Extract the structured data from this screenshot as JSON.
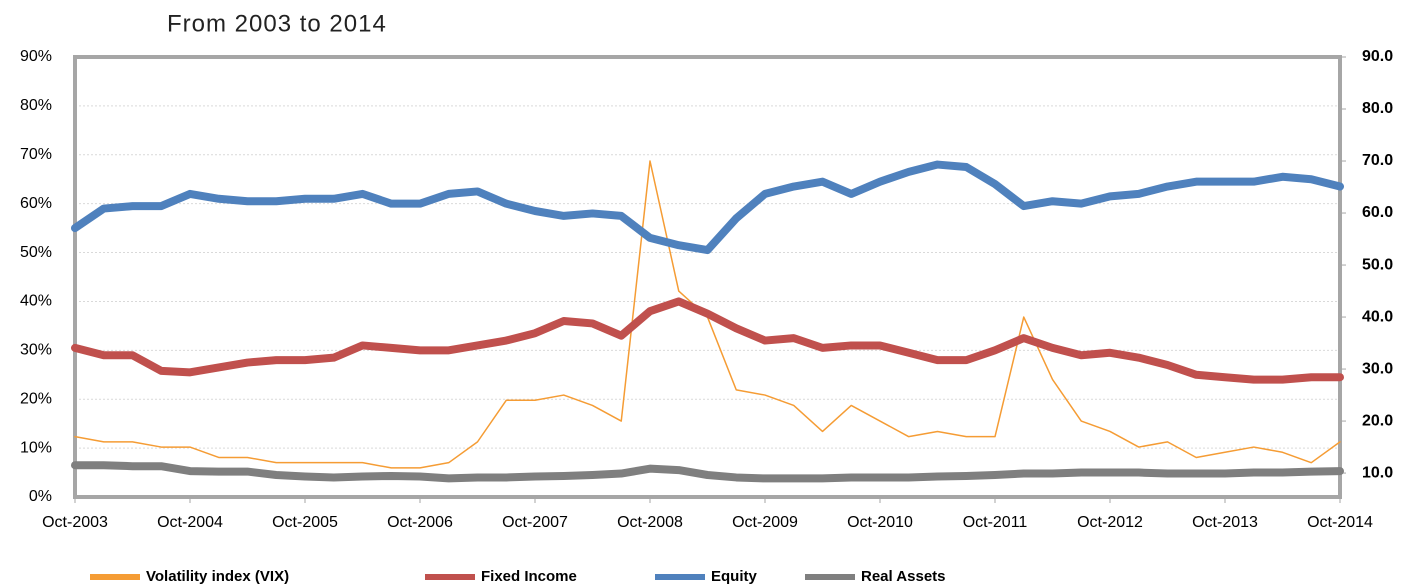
{
  "chart_data": {
    "type": "line",
    "title": "From 2003 to 2014",
    "x": [
      2003.75,
      2004.0,
      2004.25,
      2004.5,
      2004.75,
      2005.0,
      2005.25,
      2005.5,
      2005.75,
      2006.0,
      2006.25,
      2006.5,
      2006.75,
      2007.0,
      2007.25,
      2007.5,
      2007.75,
      2008.0,
      2008.25,
      2008.5,
      2008.75,
      2009.0,
      2009.25,
      2009.5,
      2009.75,
      2010.0,
      2010.25,
      2010.5,
      2010.75,
      2011.0,
      2011.25,
      2011.5,
      2011.75,
      2012.0,
      2012.25,
      2012.5,
      2012.75,
      2013.0,
      2013.25,
      2013.5,
      2013.75,
      2014.0,
      2014.25,
      2014.5,
      2014.75
    ],
    "series": [
      {
        "name": "Volatility index (VIX)",
        "color": "#f59c34",
        "axis": "y2",
        "values": [
          17,
          16,
          16,
          15,
          15,
          13,
          13,
          12,
          12,
          12,
          12,
          11,
          11,
          12,
          16,
          24,
          24,
          25,
          23,
          20,
          70,
          45,
          40,
          26,
          25,
          23,
          18,
          23,
          20,
          17,
          18,
          17,
          17,
          40,
          28,
          20,
          18,
          15,
          16,
          13,
          14,
          15,
          14,
          12,
          16
        ]
      },
      {
        "name": "Fixed Income",
        "color": "#c0504d",
        "values": [
          30.5,
          29,
          29,
          25.8,
          25.5,
          26.5,
          27.5,
          28,
          28,
          28.5,
          31,
          30.5,
          30,
          30,
          31,
          32,
          33.5,
          36,
          35.5,
          33,
          38,
          40,
          37.5,
          34.5,
          32,
          32.5,
          30.5,
          31,
          31,
          29.5,
          28,
          28,
          30,
          32.5,
          30.5,
          29,
          29.5,
          28.5,
          27,
          25,
          24.5,
          24,
          24,
          24.5,
          24.5
        ]
      },
      {
        "name": "Equity",
        "color": "#4f81bd",
        "values": [
          55,
          59,
          59.5,
          59.5,
          62,
          61,
          60.5,
          60.5,
          61,
          61,
          62,
          60,
          60,
          62,
          62.5,
          60,
          58.5,
          57.5,
          58,
          57.5,
          53,
          51.5,
          50.5,
          57,
          62,
          63.5,
          64.5,
          62,
          64.5,
          66.5,
          68,
          67.5,
          64,
          59.5,
          60.5,
          60,
          61.5,
          62,
          63.5,
          64.5,
          64.5,
          64.5,
          65.5,
          65,
          63.5
        ]
      },
      {
        "name": "Real Assets",
        "color": "#7f7f7f",
        "values": [
          6.5,
          6.5,
          6.3,
          6.3,
          5.3,
          5.2,
          5.2,
          4.5,
          4.2,
          4,
          4.2,
          4.3,
          4.2,
          3.8,
          4,
          4,
          4.2,
          4.3,
          4.5,
          4.8,
          5.8,
          5.5,
          4.5,
          4,
          3.8,
          3.8,
          3.8,
          4,
          4,
          4,
          4.2,
          4.3,
          4.5,
          4.8,
          4.8,
          5,
          5,
          5,
          4.8,
          4.8,
          4.8,
          5,
          5,
          5.2,
          5.3
        ]
      }
    ],
    "xlim": [
      2003.75,
      2014.75
    ],
    "xticks": [
      {
        "value": 2003.75,
        "label": "Oct-2003"
      },
      {
        "value": 2004.75,
        "label": "Oct-2004"
      },
      {
        "value": 2005.75,
        "label": "Oct-2005"
      },
      {
        "value": 2006.75,
        "label": "Oct-2006"
      },
      {
        "value": 2007.75,
        "label": "Oct-2007"
      },
      {
        "value": 2008.75,
        "label": "Oct-2008"
      },
      {
        "value": 2009.75,
        "label": "Oct-2009"
      },
      {
        "value": 2010.75,
        "label": "Oct-2010"
      },
      {
        "value": 2011.75,
        "label": "Oct-2011"
      },
      {
        "value": 2012.75,
        "label": "Oct-2012"
      },
      {
        "value": 2013.75,
        "label": "Oct-2013"
      },
      {
        "value": 2014.75,
        "label": "Oct-2014"
      }
    ],
    "ylim": [
      0,
      90
    ],
    "yticks": [
      {
        "value": 0,
        "label": "0%"
      },
      {
        "value": 10,
        "label": "10%"
      },
      {
        "value": 20,
        "label": "20%"
      },
      {
        "value": 30,
        "label": "30%"
      },
      {
        "value": 40,
        "label": "40%"
      },
      {
        "value": 50,
        "label": "50%"
      },
      {
        "value": 60,
        "label": "60%"
      },
      {
        "value": 70,
        "label": "70%"
      },
      {
        "value": 80,
        "label": "80%"
      },
      {
        "value": 90,
        "label": "90%"
      }
    ],
    "y2lim": [
      5.4,
      90
    ],
    "y2ticks": [
      {
        "value": 10,
        "label": "10.0"
      },
      {
        "value": 20,
        "label": "20.0"
      },
      {
        "value": 30,
        "label": "30.0"
      },
      {
        "value": 40,
        "label": "40.0"
      },
      {
        "value": 50,
        "label": "50.0"
      },
      {
        "value": 60,
        "label": "60.0"
      },
      {
        "value": 70,
        "label": "70.0"
      },
      {
        "value": 80,
        "label": "80.0"
      },
      {
        "value": 90,
        "label": "90.0"
      }
    ],
    "grid": true
  }
}
